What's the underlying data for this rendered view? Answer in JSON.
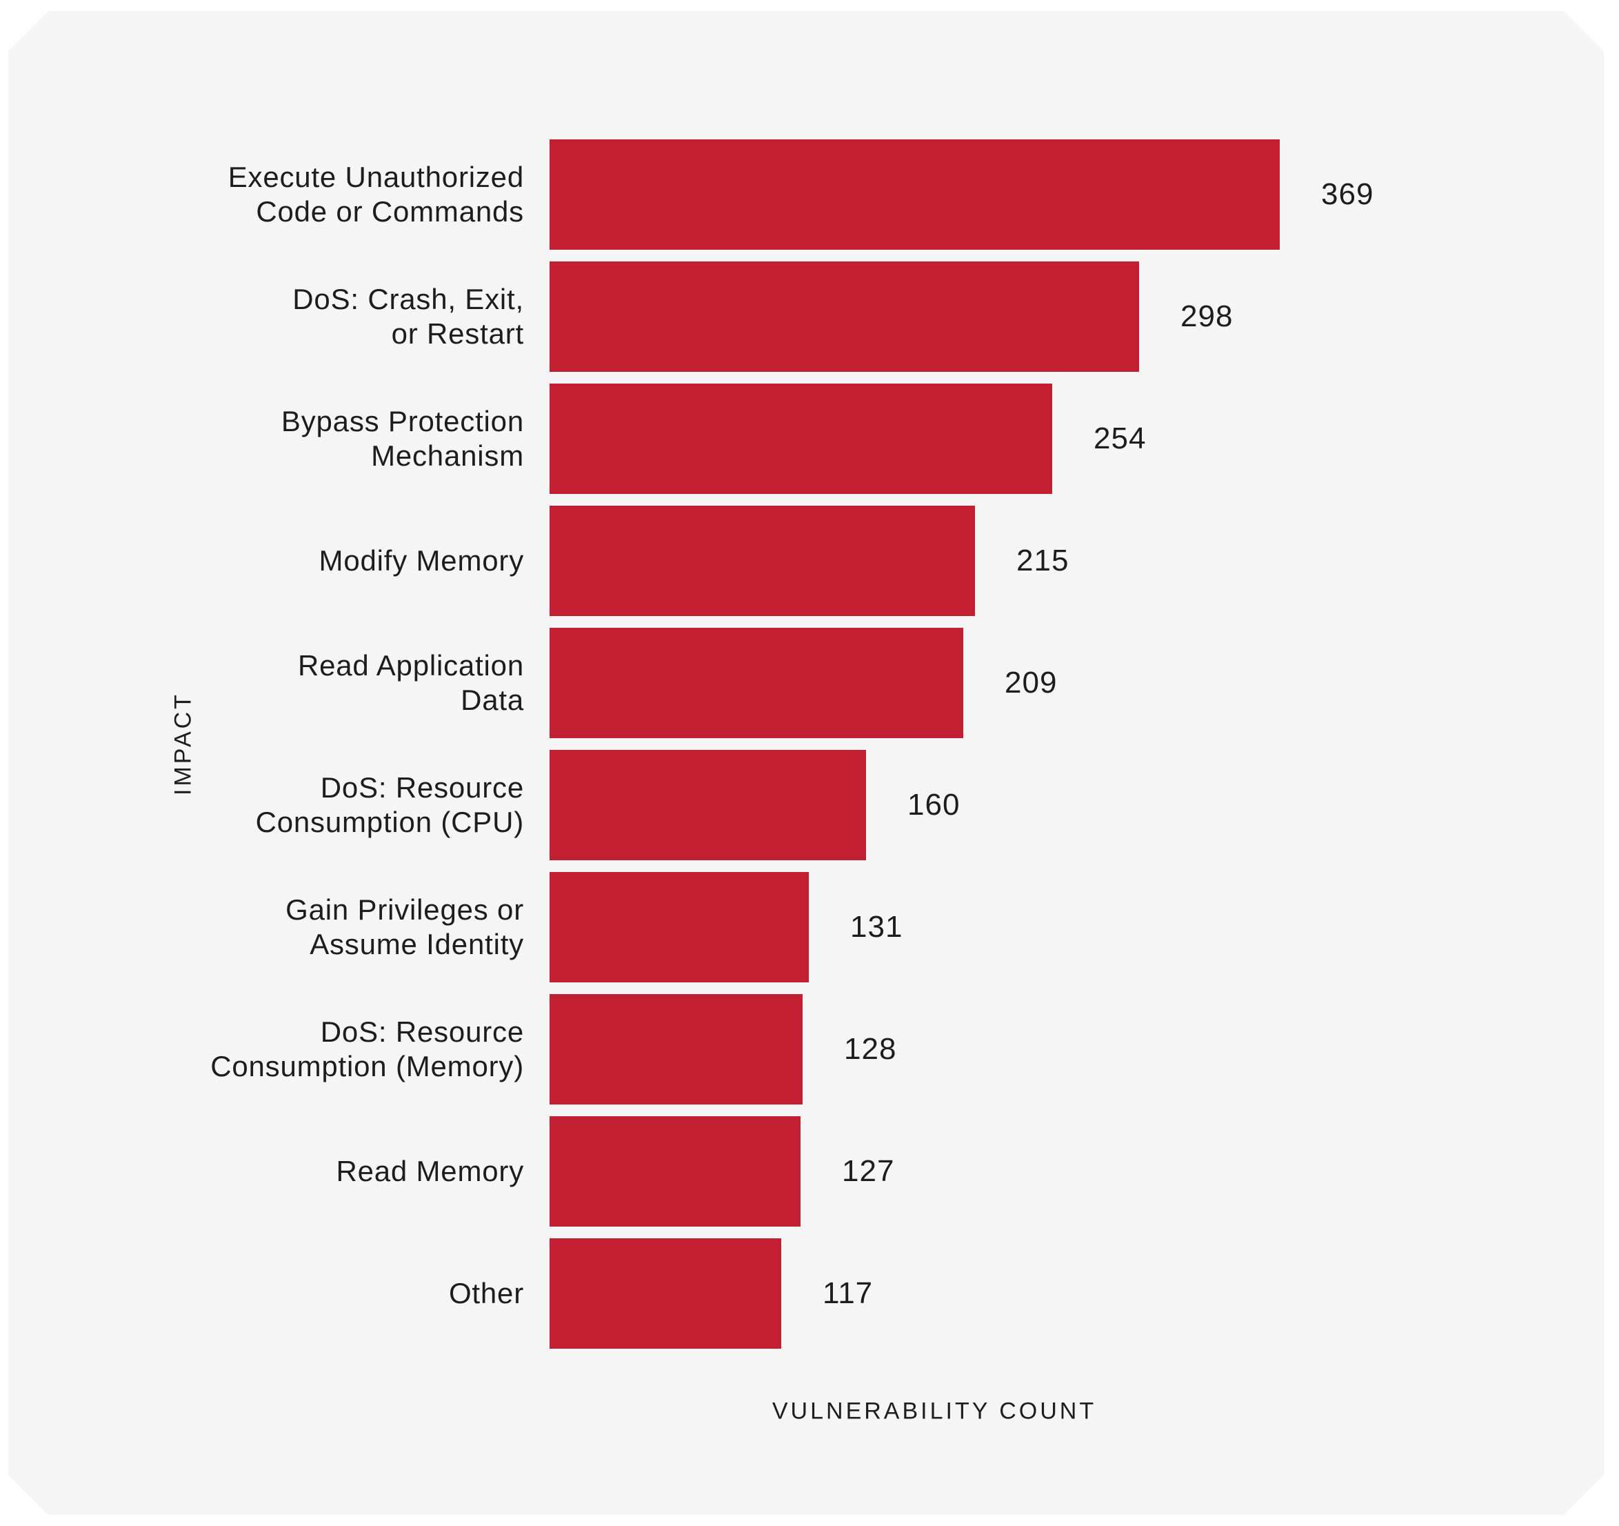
{
  "card": {
    "background_color": "#f5f5f5"
  },
  "chart_data": {
    "type": "bar",
    "orientation": "horizontal",
    "title": "",
    "xlabel": "VULNERABILITY COUNT",
    "ylabel": "IMPACT",
    "xlim": [
      0,
      369
    ],
    "grid": false,
    "legend": false,
    "bar_color": "#c21f33",
    "text_color": "#1d1d1d",
    "categories": [
      "Execute Unauthorized\nCode or Commands",
      "DoS: Crash, Exit,\nor Restart",
      "Bypass Protection\nMechanism",
      "Modify Memory",
      "Read Application\nData",
      "DoS: Resource\nConsumption (CPU)",
      "Gain Privileges or\nAssume Identity",
      "DoS: Resource\nConsumption (Memory)",
      "Read Memory",
      "Other"
    ],
    "values": [
      369,
      298,
      254,
      215,
      209,
      160,
      131,
      128,
      127,
      117
    ],
    "value_labels": [
      "369",
      "298",
      "254",
      "215",
      "209",
      "160",
      "131",
      "128",
      "127",
      "117"
    ]
  }
}
